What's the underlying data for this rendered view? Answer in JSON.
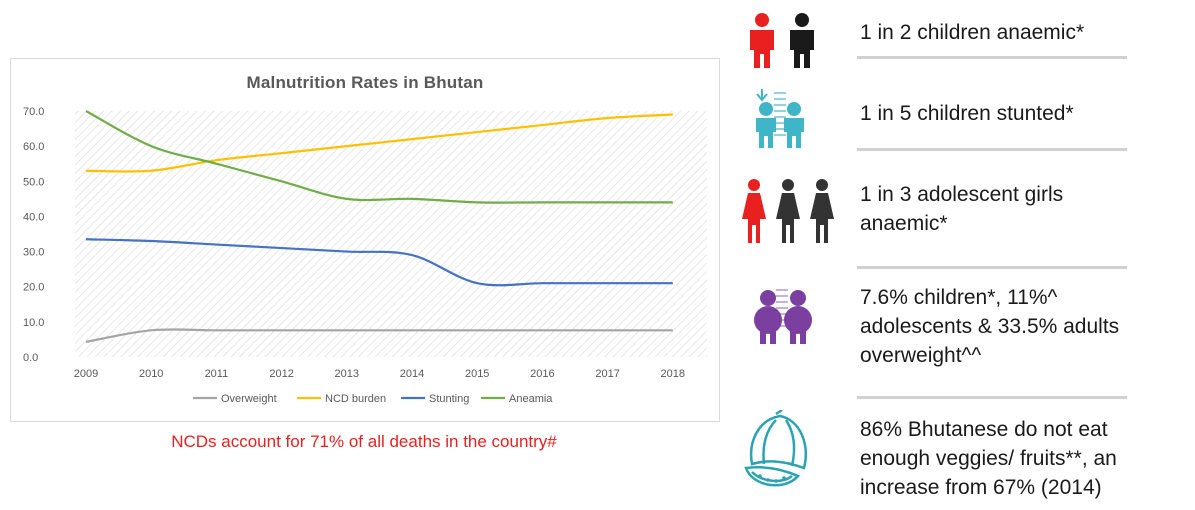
{
  "colors": {
    "overweight": "#a5a5a5",
    "ncd_burden": "#ffc000",
    "stunting": "#4472c4",
    "anaemia": "#70ad47",
    "note_red": "#e8201f",
    "icon_red": "#e8201f",
    "icon_black": "#1a1a1a",
    "icon_teal": "#3fb5c8",
    "icon_purple": "#7b3fa0"
  },
  "chart_data": {
    "type": "line",
    "title": "Malnutrition Rates in Bhutan",
    "xlabel": "",
    "ylabel": "",
    "categories": [
      "2009",
      "2010",
      "2011",
      "2012",
      "2013",
      "2014",
      "2015",
      "2016",
      "2017",
      "2018"
    ],
    "ylim": [
      0,
      70
    ],
    "y_ticks": [
      "0.0",
      "10.0",
      "20.0",
      "30.0",
      "40.0",
      "50.0",
      "60.0",
      "70.0"
    ],
    "grid": "hatched background",
    "legend_position": "bottom",
    "series": [
      {
        "name": "Overweight",
        "values": [
          4.3,
          7.6,
          7.6,
          7.6,
          7.6,
          7.6,
          7.6,
          7.6,
          7.6,
          7.6
        ]
      },
      {
        "name": "NCD burden",
        "values": [
          53,
          53,
          56,
          58,
          60,
          62,
          64,
          66,
          68,
          69
        ]
      },
      {
        "name": "Stunting",
        "values": [
          33.5,
          33,
          32,
          31,
          30,
          29,
          21,
          21,
          21,
          21
        ]
      },
      {
        "name": "Aneamia",
        "values": [
          70,
          60,
          55,
          50,
          45,
          45,
          44,
          44,
          44,
          44
        ]
      }
    ]
  },
  "note": "NCDs account for 71% of all deaths in the country#",
  "stats": [
    {
      "lines": [
        "1 in 2 children anaemic*"
      ],
      "icon": "child-pair-icon"
    },
    {
      "lines": [
        "1 in 5 children stunted*"
      ],
      "icon": "children-height-chart-icon"
    },
    {
      "lines": [
        "1 in 3 adolescent girls",
        "anaemic*"
      ],
      "icon": "adolescent-girls-icon"
    },
    {
      "lines": [
        "7.6% children*, 11%^",
        "adolescents  & 33.5% adults",
        "overweight^^"
      ],
      "icon": "overweight-children-icon"
    },
    {
      "lines": [
        "86% Bhutanese do not eat",
        "enough veggies/ fruits**, an",
        "increase from 67% (2014)"
      ],
      "icon": "watermelon-icon"
    }
  ]
}
